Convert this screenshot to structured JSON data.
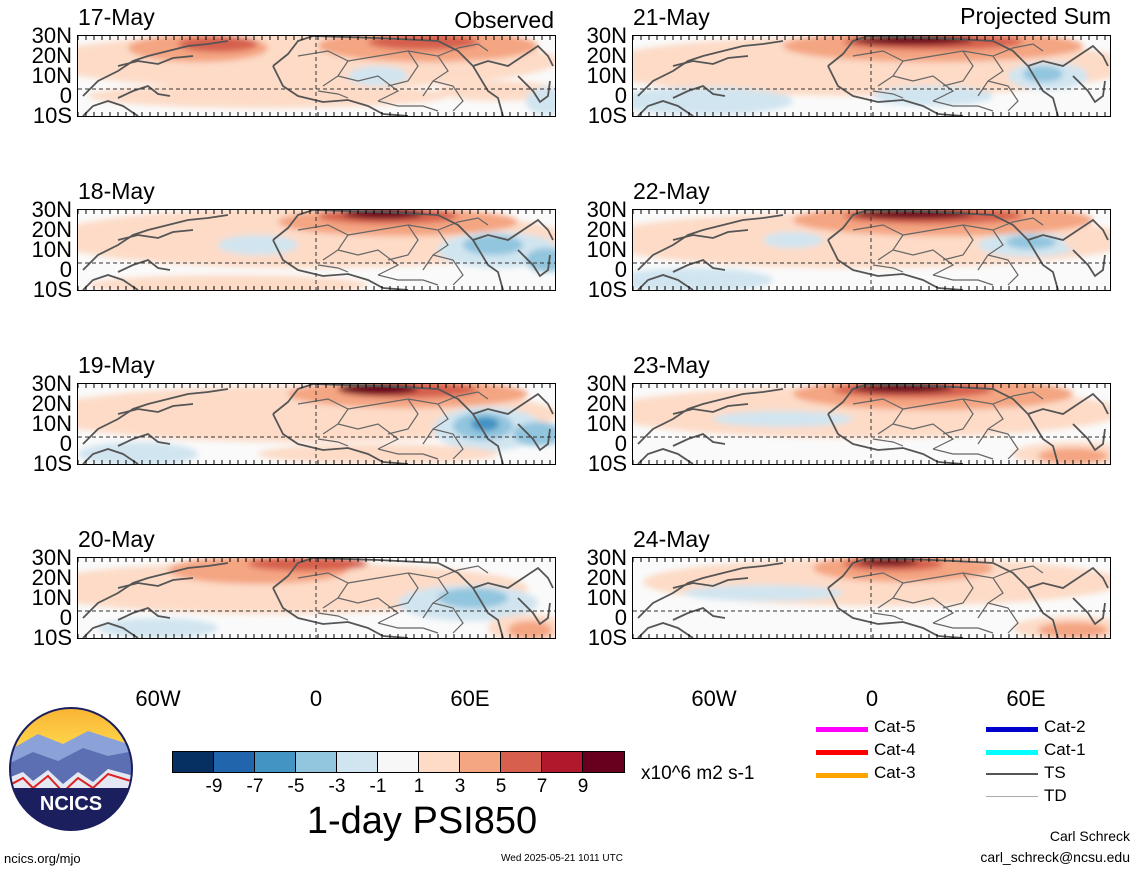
{
  "header": {
    "left_label": "Observed",
    "right_label": "Projected Sum"
  },
  "lat_labels": [
    "30N",
    "20N",
    "10N",
    "0",
    "10S"
  ],
  "lon_labels": [
    "60W",
    "0",
    "60E"
  ],
  "panels": [
    {
      "date": "17-May",
      "column": "left",
      "row": 0,
      "kind": "observed"
    },
    {
      "date": "18-May",
      "column": "left",
      "row": 1,
      "kind": "observed"
    },
    {
      "date": "19-May",
      "column": "left",
      "row": 2,
      "kind": "observed"
    },
    {
      "date": "20-May",
      "column": "left",
      "row": 3,
      "kind": "observed"
    },
    {
      "date": "21-May",
      "column": "right",
      "row": 0,
      "kind": "projected"
    },
    {
      "date": "22-May",
      "column": "right",
      "row": 1,
      "kind": "projected"
    },
    {
      "date": "23-May",
      "column": "right",
      "row": 2,
      "kind": "projected"
    },
    {
      "date": "24-May",
      "column": "right",
      "row": 3,
      "kind": "projected"
    }
  ],
  "colorbar": {
    "colors": [
      "#053061",
      "#2166ac",
      "#4393c3",
      "#92c5de",
      "#d1e5f0",
      "#f7f7f7",
      "#fddbc7",
      "#f4a582",
      "#d6604d",
      "#b2182b",
      "#67001f"
    ],
    "labels": [
      "-9",
      "-7",
      "-5",
      "-3",
      "-1",
      "1",
      "3",
      "5",
      "7",
      "9"
    ],
    "units": "x10^6 m2 s-1",
    "title": "1-day PSI850"
  },
  "legend": [
    {
      "label": "Cat-5",
      "color": "#ff00ff"
    },
    {
      "label": "Cat-4",
      "color": "#ff0000"
    },
    {
      "label": "Cat-3",
      "color": "#ffa500"
    },
    {
      "label": "Cat-2",
      "color": "#0000cc"
    },
    {
      "label": "Cat-1",
      "color": "#00ffff"
    },
    {
      "label": "TS",
      "color": "#555555"
    },
    {
      "label": "TD",
      "color": "#aaaaaa"
    }
  ],
  "logo": {
    "text": "NCICS"
  },
  "footer": {
    "url": "ncics.org/mjo",
    "timestamp": "Wed 2025-05-21 1011 UTC",
    "author": "Carl Schreck",
    "email": "carl_schreck@ncsu.edu"
  }
}
